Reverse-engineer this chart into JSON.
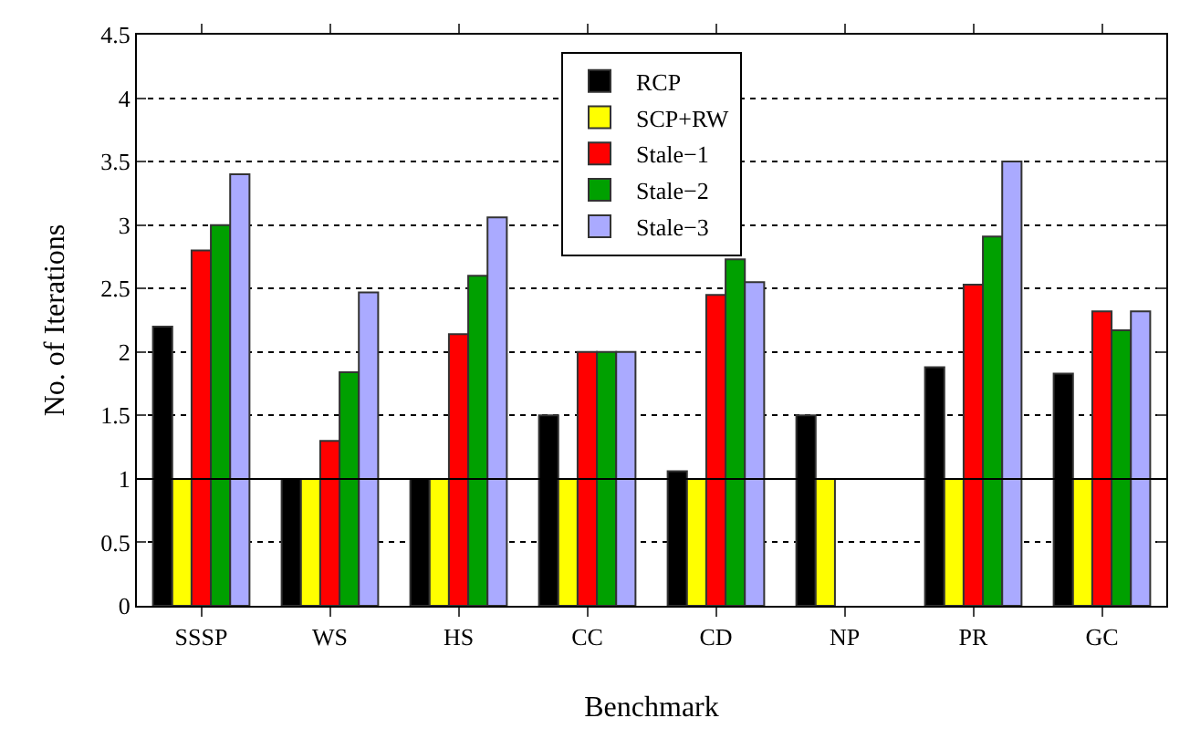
{
  "chart_data": {
    "type": "bar",
    "xlabel": "Benchmark",
    "ylabel": "No. of Iterations",
    "categories": [
      "SSSP",
      "WS",
      "HS",
      "CC",
      "CD",
      "NP",
      "PR",
      "GC"
    ],
    "series": [
      {
        "name": "RCP",
        "color": "#000000",
        "values": [
          2.2,
          1,
          1,
          1.5,
          1.06,
          1.5,
          1.88,
          1.83
        ]
      },
      {
        "name": "SCP+RW",
        "color": "#ffff00",
        "values": [
          1,
          1,
          1,
          1,
          1,
          1,
          1,
          1
        ]
      },
      {
        "name": "Stale−1",
        "color": "#ff0000",
        "values": [
          2.8,
          1.3,
          2.14,
          2,
          2.45,
          null,
          2.53,
          2.32
        ]
      },
      {
        "name": "Stale−2",
        "color": "#00a000",
        "values": [
          3.0,
          1.84,
          2.6,
          2,
          2.73,
          null,
          2.91,
          2.17
        ]
      },
      {
        "name": "Stale−3",
        "color": "#aaaaff",
        "values": [
          3.4,
          2.47,
          3.06,
          2,
          2.55,
          null,
          3.5,
          2.32
        ]
      }
    ],
    "ylim": [
      0,
      4.5
    ],
    "yticks": [
      0,
      0.5,
      1,
      1.5,
      2,
      2.5,
      3,
      3.5,
      4,
      4.5
    ],
    "ref_lines": [
      {
        "axis": "y",
        "value": 1,
        "color": "#000000",
        "line_style": "solid"
      }
    ],
    "grid": "y",
    "legend": "top"
  }
}
